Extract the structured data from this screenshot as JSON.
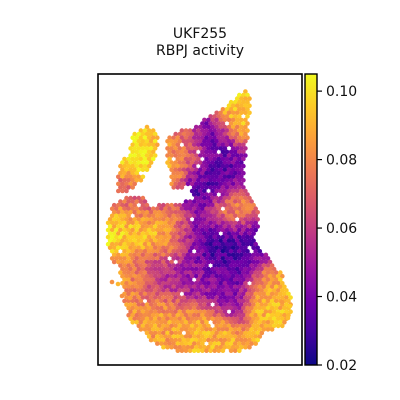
{
  "chart_data": {
    "type": "heatmap",
    "title": "UKF255",
    "subtitle": "RBPJ activity",
    "colormap": "plasma",
    "colorbar": {
      "range": [
        0.02,
        0.105
      ],
      "ticks": [
        0.02,
        0.04,
        0.06,
        0.08,
        0.1
      ],
      "tick_labels": [
        "0.02",
        "0.04",
        "0.06",
        "0.08",
        "0.10"
      ]
    },
    "grid": false,
    "hotspots": [
      {
        "x": 0.27,
        "y": 0.33,
        "value": 0.102
      },
      {
        "x": 0.18,
        "y": 0.52,
        "value": 0.098
      },
      {
        "x": 0.35,
        "y": 0.57,
        "value": 0.094
      },
      {
        "x": 0.72,
        "y": 0.17,
        "value": 0.095
      },
      {
        "x": 0.43,
        "y": 0.28,
        "value": 0.078
      },
      {
        "x": 0.67,
        "y": 0.47,
        "value": 0.082
      },
      {
        "x": 0.5,
        "y": 0.87,
        "value": 0.09
      },
      {
        "x": 0.35,
        "y": 0.82,
        "value": 0.086
      },
      {
        "x": 0.2,
        "y": 0.7,
        "value": 0.085
      },
      {
        "x": 0.84,
        "y": 0.72,
        "value": 0.088
      },
      {
        "x": 0.92,
        "y": 0.79,
        "value": 0.092
      },
      {
        "x": 0.55,
        "y": 0.37,
        "value": 0.03
      },
      {
        "x": 0.63,
        "y": 0.58,
        "value": 0.028
      },
      {
        "x": 0.68,
        "y": 0.66,
        "value": 0.032
      },
      {
        "x": 0.57,
        "y": 0.25,
        "value": 0.034
      },
      {
        "x": 0.46,
        "y": 0.58,
        "value": 0.036
      },
      {
        "x": 0.74,
        "y": 0.32,
        "value": 0.04
      },
      {
        "x": 0.59,
        "y": 0.74,
        "value": 0.044
      },
      {
        "x": 0.79,
        "y": 0.58,
        "value": 0.036
      },
      {
        "x": 0.44,
        "y": 0.73,
        "value": 0.048
      },
      {
        "x": 0.22,
        "y": 0.44,
        "value": 0.06
      },
      {
        "x": 0.3,
        "y": 0.69,
        "value": 0.05
      }
    ]
  }
}
